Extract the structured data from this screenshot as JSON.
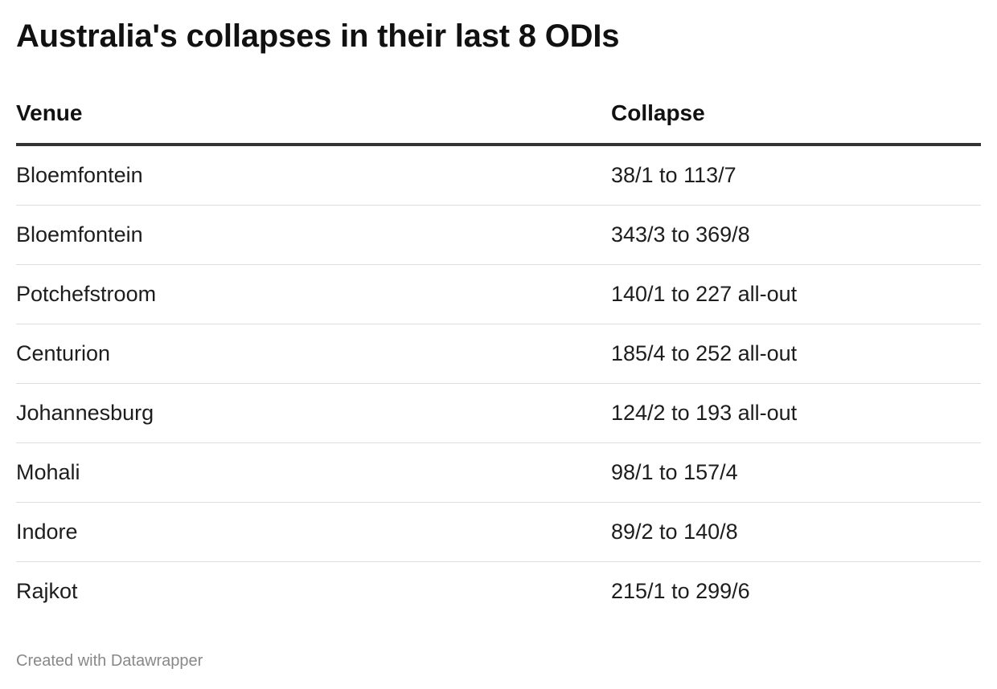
{
  "title": "Australia's collapses in their last 8 ODIs",
  "footer": "Created with Datawrapper",
  "chart_data": {
    "type": "table",
    "title": "Australia's collapses in their last 8 ODIs",
    "columns": [
      "Venue",
      "Collapse"
    ],
    "rows": [
      {
        "venue": "Bloemfontein",
        "collapse": "38/1 to 113/7"
      },
      {
        "venue": "Bloemfontein",
        "collapse": "343/3 to 369/8"
      },
      {
        "venue": "Potchefstroom",
        "collapse": "140/1 to 227 all-out"
      },
      {
        "venue": "Centurion",
        "collapse": "185/4 to 252 all-out"
      },
      {
        "venue": "Johannesburg",
        "collapse": "124/2 to 193 all-out"
      },
      {
        "venue": "Mohali",
        "collapse": "98/1 to 157/4"
      },
      {
        "venue": "Indore",
        "collapse": "89/2 to 140/8"
      },
      {
        "venue": "Rajkot",
        "collapse": "215/1 to 299/6"
      }
    ]
  }
}
